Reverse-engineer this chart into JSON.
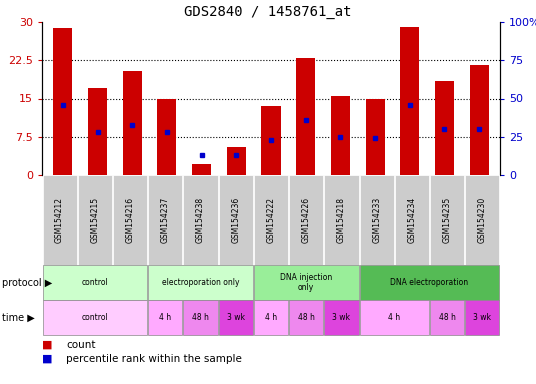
{
  "title": "GDS2840 / 1458761_at",
  "samples": [
    "GSM154212",
    "GSM154215",
    "GSM154216",
    "GSM154237",
    "GSM154238",
    "GSM154236",
    "GSM154222",
    "GSM154226",
    "GSM154218",
    "GSM154233",
    "GSM154234",
    "GSM154235",
    "GSM154230"
  ],
  "count_values": [
    28.8,
    17.0,
    20.3,
    15.0,
    2.2,
    5.5,
    13.5,
    23.0,
    15.5,
    15.0,
    29.0,
    18.5,
    21.5
  ],
  "percentile_values": [
    46,
    28,
    33,
    28,
    13,
    13,
    23,
    36,
    25,
    24,
    46,
    30,
    30
  ],
  "ylim_left": [
    0,
    30
  ],
  "ylim_right": [
    0,
    100
  ],
  "yticks_left": [
    0,
    7.5,
    15,
    22.5,
    30
  ],
  "yticks_right": [
    0,
    25,
    50,
    75,
    100
  ],
  "ytick_labels_left": [
    "0",
    "7.5",
    "15",
    "22.5",
    "30"
  ],
  "ytick_labels_right": [
    "0",
    "25",
    "50",
    "75",
    "100%"
  ],
  "bar_color": "#cc0000",
  "marker_color": "#0000cc",
  "bg_color": "#ffffff",
  "sample_bg_color": "#cccccc",
  "protocol_groups": [
    {
      "label": "control",
      "start": 0,
      "end": 3,
      "color": "#ccffcc"
    },
    {
      "label": "electroporation only",
      "start": 3,
      "end": 6,
      "color": "#ccffcc"
    },
    {
      "label": "DNA injection\nonly",
      "start": 6,
      "end": 9,
      "color": "#99ee99"
    },
    {
      "label": "DNA electroporation",
      "start": 9,
      "end": 13,
      "color": "#55bb55"
    }
  ],
  "time_groups": [
    {
      "label": "control",
      "start": 0,
      "end": 3,
      "color": "#ffccff"
    },
    {
      "label": "4 h",
      "start": 3,
      "end": 4,
      "color": "#ffaaff"
    },
    {
      "label": "48 h",
      "start": 4,
      "end": 5,
      "color": "#ee88ee"
    },
    {
      "label": "3 wk",
      "start": 5,
      "end": 6,
      "color": "#dd44dd"
    },
    {
      "label": "4 h",
      "start": 6,
      "end": 7,
      "color": "#ffaaff"
    },
    {
      "label": "48 h",
      "start": 7,
      "end": 8,
      "color": "#ee88ee"
    },
    {
      "label": "3 wk",
      "start": 8,
      "end": 9,
      "color": "#dd44dd"
    },
    {
      "label": "4 h",
      "start": 9,
      "end": 11,
      "color": "#ffaaff"
    },
    {
      "label": "48 h",
      "start": 11,
      "end": 12,
      "color": "#ee88ee"
    },
    {
      "label": "3 wk",
      "start": 12,
      "end": 13,
      "color": "#dd44dd"
    }
  ],
  "legend_count_label": "count",
  "legend_pct_label": "percentile rank within the sample"
}
